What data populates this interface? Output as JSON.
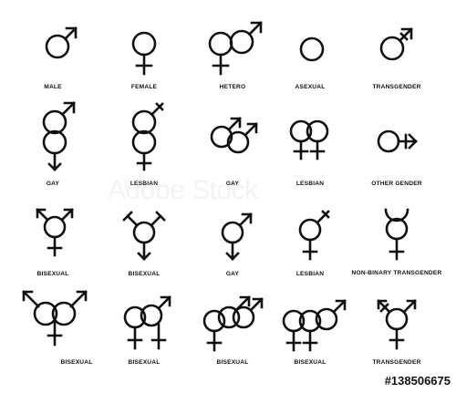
{
  "symbols": [
    {
      "id": "male",
      "label": "MALE"
    },
    {
      "id": "female",
      "label": "FEMALE"
    },
    {
      "id": "hetero",
      "label": "HETERO"
    },
    {
      "id": "asexual",
      "label": "ASEXUAL"
    },
    {
      "id": "transgender_1",
      "label": "TRANSGENDER"
    },
    {
      "id": "gay_1",
      "label": "GAY"
    },
    {
      "id": "lesbian_1",
      "label": "LESBIAN"
    },
    {
      "id": "gay_2",
      "label": "GAY"
    },
    {
      "id": "lesbian_2",
      "label": "LESBIAN"
    },
    {
      "id": "other_gender",
      "label": "OTHER GENDER"
    },
    {
      "id": "bisexual_1",
      "label": "BISEXUAL"
    },
    {
      "id": "bisexual_2",
      "label": "BISEXUAL"
    },
    {
      "id": "gay_3",
      "label": "GAY"
    },
    {
      "id": "lesbian_3",
      "label": "LESBIAN"
    },
    {
      "id": "nonbinary_transgender",
      "label": "NON-BINARY TRANSGENDER"
    },
    {
      "id": "bisexual_3",
      "label": "BISEXUAL"
    },
    {
      "id": "bisexual_4",
      "label": "BISEXUAL"
    },
    {
      "id": "bisexual_5",
      "label": "BISEXUAL"
    },
    {
      "id": "bisexual_6",
      "label": "BISEXUAL"
    },
    {
      "id": "transgender_2",
      "label": "TRANSGENDER"
    }
  ],
  "watermark": "Adobe Stock",
  "stock_id": "#138506675",
  "colors": {
    "ink": "#111111",
    "background": "#ffffff"
  }
}
